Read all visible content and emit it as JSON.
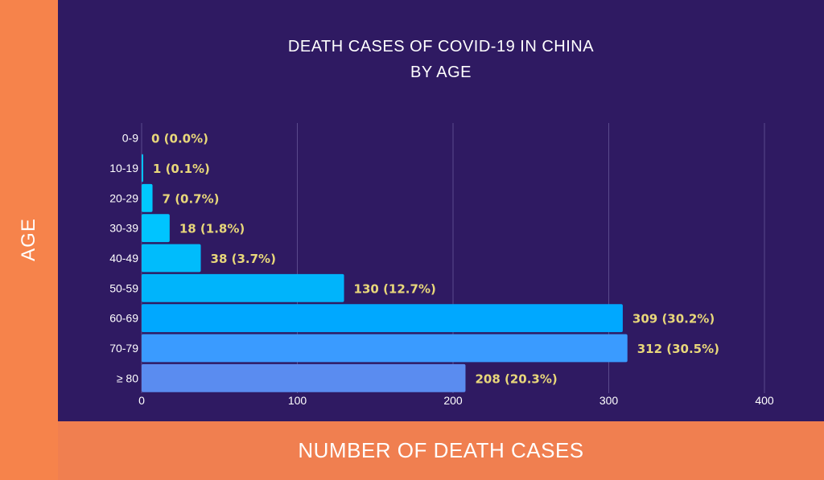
{
  "chart_data": {
    "type": "bar",
    "orientation": "horizontal",
    "title_lines": [
      "DEATH CASES OF COVID-19 IN CHINA",
      "BY AGE"
    ],
    "xlabel": "NUMBER OF DEATH CASES",
    "ylabel": "AGE",
    "categories": [
      "0-9",
      "10-19",
      "20-29",
      "30-39",
      "40-49",
      "50-59",
      "60-69",
      "70-79",
      "≥ 80"
    ],
    "values": [
      0,
      1,
      7,
      18,
      38,
      130,
      309,
      312,
      208
    ],
    "data_labels": [
      "0 (0.0%)",
      "1 (0.1%)",
      "7 (0.7%)",
      "18 (1.8%)",
      "38 (3.7%)",
      "130 (12.7%)",
      "309 (30.2%)",
      "312 (30.5%)",
      "208 (20.3%)"
    ],
    "xlim": [
      0,
      400
    ],
    "xticks": [
      "0",
      "100",
      "200",
      "300",
      "400"
    ],
    "grid": true,
    "colors": [
      "#00c8ff",
      "#00c8ff",
      "#00c8ff",
      "#00c4ff",
      "#00bcfc",
      "#00b4fb",
      "#00a8ff",
      "#3a9bff",
      "#5a8cf0"
    ],
    "label_color": "#e8d77a"
  }
}
